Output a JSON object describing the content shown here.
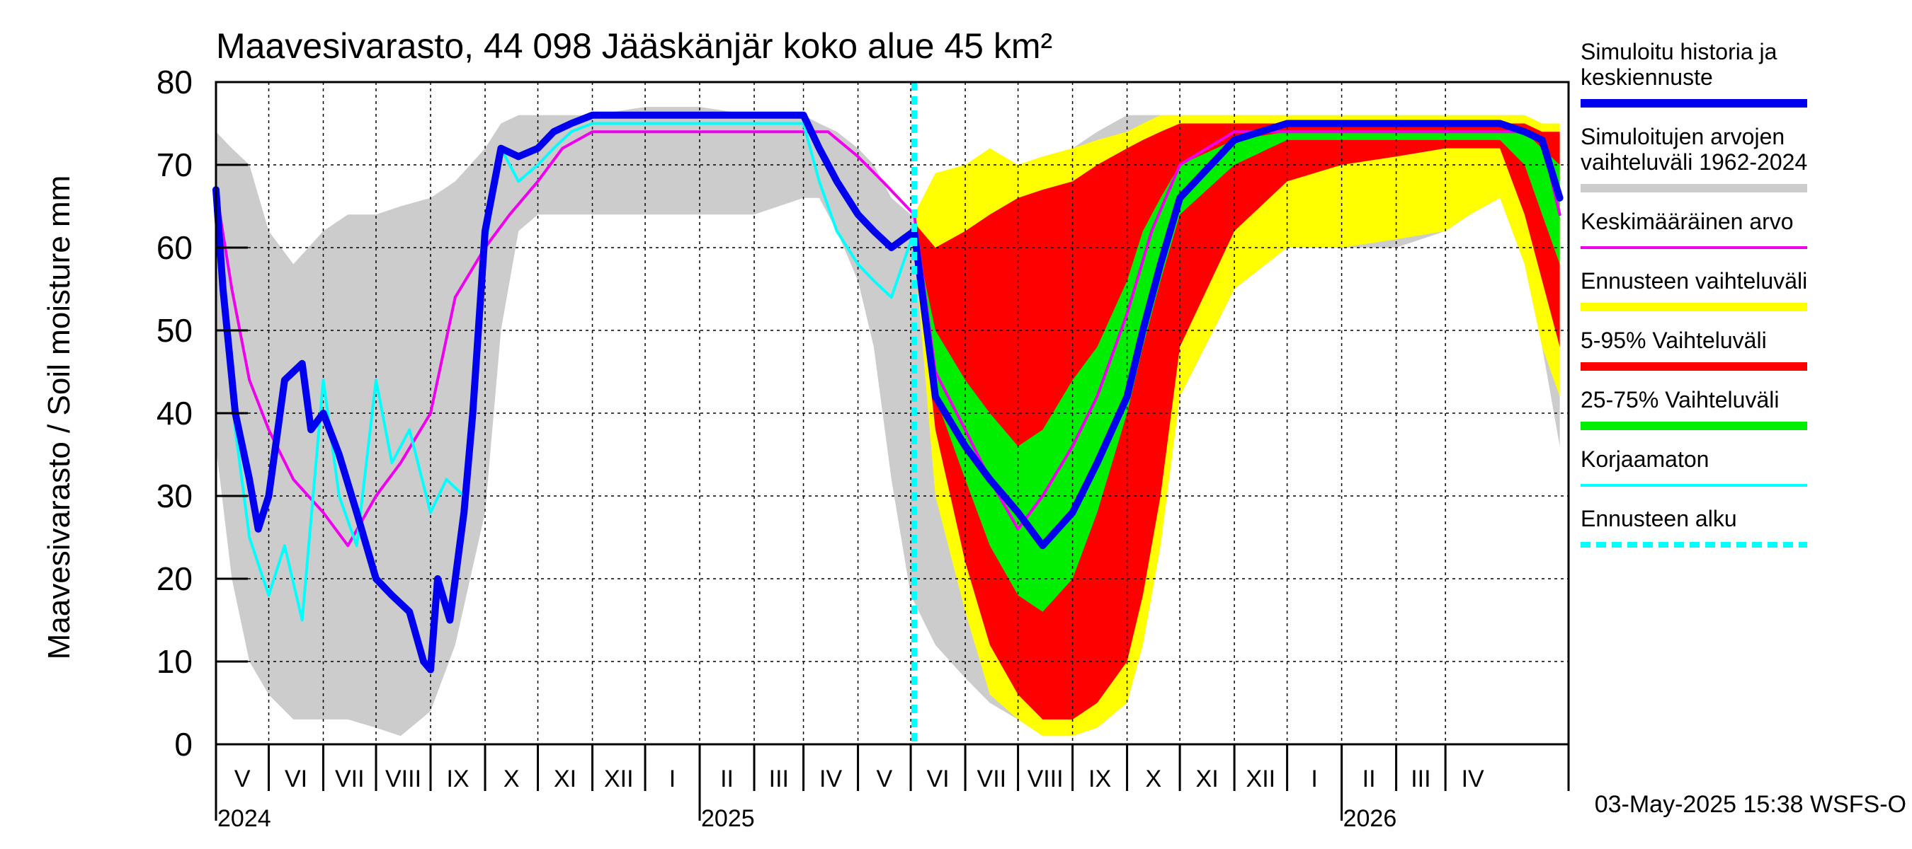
{
  "chart_data": {
    "type": "area",
    "title": "Maavesivarasto, 44 098 Jääskänjär koko alue 45 km²",
    "ylabel": "Maavesivarasto / Soil moisture   mm",
    "ylim": [
      0,
      80
    ],
    "yticks": [
      0,
      10,
      20,
      30,
      40,
      50,
      60,
      70,
      80
    ],
    "xlim": [
      "2024-04-01",
      "2026-05-10"
    ],
    "grid": true,
    "legend_position": "right",
    "forecast_start": "2025-05-03",
    "footer": "03-May-2025 15:38 WSFS-O",
    "months": [
      {
        "label": "V",
        "start": "2024-04-01",
        "end": "2024-05-01"
      },
      {
        "label": "VI",
        "start": "2024-05-01",
        "end": "2024-06-01"
      },
      {
        "label": "VII",
        "start": "2024-06-01",
        "end": "2024-07-01"
      },
      {
        "label": "VIII",
        "start": "2024-07-01",
        "end": "2024-08-01"
      },
      {
        "label": "IX",
        "start": "2024-08-01",
        "end": "2024-09-01"
      },
      {
        "label": "X",
        "start": "2024-09-01",
        "end": "2024-10-01"
      },
      {
        "label": "XI",
        "start": "2024-10-01",
        "end": "2024-11-01"
      },
      {
        "label": "XII",
        "start": "2024-11-01",
        "end": "2024-12-01"
      },
      {
        "label": "I",
        "start": "2024-12-01",
        "end": "2025-01-01"
      },
      {
        "label": "II",
        "start": "2025-01-01",
        "end": "2025-02-01"
      },
      {
        "label": "III",
        "start": "2025-02-01",
        "end": "2025-03-01"
      },
      {
        "label": "IV",
        "start": "2025-03-01",
        "end": "2025-04-01"
      },
      {
        "label": "V",
        "start": "2025-04-01",
        "end": "2025-05-01"
      },
      {
        "label": "VI",
        "start": "2025-05-01",
        "end": "2025-06-01"
      },
      {
        "label": "VII",
        "start": "2025-06-01",
        "end": "2025-07-01"
      },
      {
        "label": "VIII",
        "start": "2025-07-01",
        "end": "2025-08-01"
      },
      {
        "label": "IX",
        "start": "2025-08-01",
        "end": "2025-09-01"
      },
      {
        "label": "X",
        "start": "2025-09-01",
        "end": "2025-10-01"
      },
      {
        "label": "XI",
        "start": "2025-10-01",
        "end": "2025-11-01"
      },
      {
        "label": "XII",
        "start": "2025-11-01",
        "end": "2025-12-01"
      },
      {
        "label": "I",
        "start": "2025-12-01",
        "end": "2026-01-01"
      },
      {
        "label": "II",
        "start": "2026-01-01",
        "end": "2026-02-01"
      },
      {
        "label": "III",
        "start": "2026-02-01",
        "end": "2026-03-01"
      },
      {
        "label": "IV",
        "start": "2026-03-01",
        "end": "2026-04-01"
      }
    ],
    "year_labels": [
      {
        "label": "2024",
        "date": "2024-04-01"
      },
      {
        "label": "2025",
        "date": "2025-01-01"
      },
      {
        "label": "2026",
        "date": "2026-01-01"
      }
    ],
    "legend": [
      {
        "label": "Simuloitu historia ja\nkeskiennuste",
        "color": "#0000ee",
        "style": "line"
      },
      {
        "label": "Simuloitujen arvojen\nvaihteluväli 1962-2024",
        "color": "#cccccc",
        "style": "line"
      },
      {
        "label": "Keskimääräinen arvo",
        "color": "#ee00ee",
        "style": "thin"
      },
      {
        "label": "Ennusteen vaihteluväli",
        "color": "#ffff00",
        "style": "line"
      },
      {
        "label": "5-95% Vaihteluväli",
        "color": "#ff0000",
        "style": "line"
      },
      {
        "label": "25-75% Vaihteluväli",
        "color": "#00ee00",
        "style": "line"
      },
      {
        "label": "Korjaamaton",
        "color": "#00ffff",
        "style": "thin"
      },
      {
        "label": "Ennusteen alku",
        "color": "#00ffff",
        "style": "dashed"
      }
    ],
    "series": {
      "historical_range": {
        "name": "Simuloitujen arvojen vaihteluväli 1962-2024",
        "color": "#cccccc",
        "x": [
          "2024-04-01",
          "2024-04-10",
          "2024-04-20",
          "2024-05-01",
          "2024-05-15",
          "2024-06-01",
          "2024-06-15",
          "2024-07-01",
          "2024-07-15",
          "2024-08-01",
          "2024-08-15",
          "2024-09-01",
          "2024-09-10",
          "2024-09-20",
          "2024-10-01",
          "2024-11-01",
          "2024-12-01",
          "2025-01-01",
          "2025-02-01",
          "2025-03-01",
          "2025-03-10",
          "2025-03-20",
          "2025-04-01",
          "2025-04-10",
          "2025-04-20",
          "2025-05-01",
          "2025-05-15",
          "2025-06-01",
          "2025-06-15",
          "2025-07-01",
          "2025-07-15",
          "2025-08-01",
          "2025-08-15",
          "2025-09-01",
          "2025-09-10",
          "2025-09-20",
          "2025-10-01",
          "2025-11-01",
          "2025-12-01",
          "2026-01-01",
          "2026-02-01",
          "2026-03-01",
          "2026-03-15",
          "2026-04-01",
          "2026-04-15",
          "2026-04-25",
          "2026-05-05"
        ],
        "upper": [
          74,
          72,
          70,
          62,
          58,
          62,
          64,
          64,
          65,
          66,
          68,
          72,
          75,
          76,
          76,
          76,
          77,
          77,
          76,
          76,
          75,
          74,
          72,
          70,
          66,
          64,
          64,
          62,
          60,
          66,
          68,
          72,
          74,
          76,
          76,
          76,
          76,
          76,
          76,
          76,
          76,
          76,
          76,
          76,
          76,
          75,
          74
        ],
        "lower": [
          36,
          20,
          10,
          6,
          3,
          3,
          3,
          2,
          1,
          4,
          12,
          28,
          50,
          62,
          64,
          64,
          64,
          64,
          64,
          66,
          66,
          62,
          56,
          48,
          32,
          18,
          12,
          8,
          5,
          3,
          2,
          3,
          6,
          10,
          22,
          34,
          48,
          58,
          60,
          60,
          60,
          62,
          64,
          66,
          58,
          48,
          36
        ]
      },
      "forecast_range": {
        "name": "Ennusteen vaihteluväli",
        "color": "#ffff00",
        "x": [
          "2025-05-03",
          "2025-05-15",
          "2025-06-01",
          "2025-06-15",
          "2025-07-01",
          "2025-07-15",
          "2025-08-01",
          "2025-08-15",
          "2025-09-01",
          "2025-09-10",
          "2025-09-20",
          "2025-10-01",
          "2025-11-01",
          "2025-12-01",
          "2026-01-01",
          "2026-02-01",
          "2026-03-01",
          "2026-03-15",
          "2026-04-01",
          "2026-04-15",
          "2026-04-25",
          "2026-05-05"
        ],
        "upper": [
          64,
          69,
          70,
          72,
          70,
          71,
          72,
          73,
          74,
          75,
          76,
          76,
          76,
          76,
          76,
          76,
          76,
          76,
          76,
          76,
          75,
          75
        ],
        "lower": [
          60,
          30,
          16,
          6,
          3,
          1,
          1,
          2,
          5,
          12,
          24,
          42,
          55,
          60,
          60,
          61,
          62,
          64,
          66,
          58,
          48,
          42
        ]
      },
      "p5_95": {
        "name": "5-95% Vaihteluväli",
        "color": "#ff0000",
        "x": [
          "2025-05-03",
          "2025-05-15",
          "2025-06-01",
          "2025-06-15",
          "2025-07-01",
          "2025-07-15",
          "2025-08-01",
          "2025-08-15",
          "2025-09-01",
          "2025-09-10",
          "2025-09-20",
          "2025-10-01",
          "2025-11-01",
          "2025-12-01",
          "2026-01-01",
          "2026-02-01",
          "2026-03-01",
          "2026-03-15",
          "2026-04-01",
          "2026-04-15",
          "2026-04-25",
          "2026-05-05"
        ],
        "upper": [
          63,
          60,
          62,
          64,
          66,
          67,
          68,
          70,
          72,
          73,
          74,
          75,
          75,
          75,
          75,
          75,
          75,
          75,
          75,
          75,
          74,
          74
        ],
        "lower": [
          61,
          38,
          22,
          12,
          6,
          3,
          3,
          5,
          10,
          18,
          30,
          48,
          62,
          68,
          70,
          71,
          72,
          72,
          72,
          64,
          56,
          48
        ]
      },
      "p25_75": {
        "name": "25-75% Vaihteluväli",
        "color": "#00ee00",
        "x": [
          "2025-05-03",
          "2025-05-15",
          "2025-06-01",
          "2025-06-15",
          "2025-07-01",
          "2025-07-15",
          "2025-08-01",
          "2025-08-15",
          "2025-09-01",
          "2025-09-10",
          "2025-09-20",
          "2025-10-01",
          "2025-11-01",
          "2025-12-01",
          "2026-01-01",
          "2026-02-01",
          "2026-03-01",
          "2026-03-15",
          "2026-04-01",
          "2026-04-15",
          "2026-04-25",
          "2026-05-05"
        ],
        "upper": [
          62,
          50,
          44,
          40,
          36,
          38,
          44,
          48,
          56,
          62,
          66,
          70,
          73,
          74,
          74,
          74,
          74,
          74,
          74,
          74,
          72,
          70
        ],
        "lower": [
          61,
          42,
          32,
          24,
          18,
          16,
          20,
          28,
          40,
          48,
          56,
          64,
          70,
          73,
          73,
          73,
          73,
          73,
          73,
          70,
          64,
          58
        ]
      },
      "simulated": {
        "name": "Simuloitu historia ja keskiennuste",
        "color": "#0000ee",
        "x": [
          "2024-04-01",
          "2024-04-05",
          "2024-04-12",
          "2024-04-20",
          "2024-04-25",
          "2024-05-01",
          "2024-05-10",
          "2024-05-20",
          "2024-05-25",
          "2024-06-01",
          "2024-06-10",
          "2024-06-20",
          "2024-07-01",
          "2024-07-10",
          "2024-07-20",
          "2024-07-28",
          "2024-08-01",
          "2024-08-05",
          "2024-08-12",
          "2024-08-20",
          "2024-08-25",
          "2024-09-01",
          "2024-09-10",
          "2024-09-20",
          "2024-10-01",
          "2024-10-10",
          "2024-10-20",
          "2024-11-01",
          "2024-12-01",
          "2025-01-01",
          "2025-02-01",
          "2025-03-01",
          "2025-03-10",
          "2025-03-20",
          "2025-04-01",
          "2025-04-10",
          "2025-04-20",
          "2025-05-03",
          "2025-05-15",
          "2025-06-01",
          "2025-06-15",
          "2025-07-01",
          "2025-07-15",
          "2025-08-01",
          "2025-08-15",
          "2025-09-01",
          "2025-09-10",
          "2025-09-20",
          "2025-10-01",
          "2025-11-01",
          "2025-12-01",
          "2026-01-01",
          "2026-02-01",
          "2026-03-01",
          "2026-03-15",
          "2026-04-01",
          "2026-04-15",
          "2026-04-25",
          "2026-05-05"
        ],
        "y": [
          67,
          55,
          40,
          32,
          26,
          30,
          44,
          46,
          38,
          40,
          35,
          28,
          20,
          18,
          16,
          10,
          9,
          20,
          15,
          28,
          40,
          62,
          72,
          71,
          72,
          74,
          75,
          76,
          76,
          76,
          76,
          76,
          72,
          68,
          64,
          62,
          60,
          62,
          42,
          36,
          32,
          28,
          24,
          28,
          34,
          42,
          50,
          58,
          66,
          73,
          75,
          75,
          75,
          75,
          75,
          75,
          74,
          73,
          66
        ]
      },
      "mean": {
        "name": "Keskimääräinen arvo",
        "color": "#ee00ee",
        "x": [
          "2024-04-01",
          "2024-04-10",
          "2024-04-20",
          "2024-05-01",
          "2024-05-15",
          "2024-06-01",
          "2024-06-15",
          "2024-07-01",
          "2024-07-15",
          "2024-08-01",
          "2024-08-15",
          "2024-09-01",
          "2024-09-15",
          "2024-10-01",
          "2024-10-15",
          "2024-11-01",
          "2024-12-01",
          "2025-01-01",
          "2025-02-01",
          "2025-03-01",
          "2025-03-15",
          "2025-04-01",
          "2025-04-15",
          "2025-05-03",
          "2025-05-15",
          "2025-06-01",
          "2025-06-15",
          "2025-07-01",
          "2025-07-15",
          "2025-08-01",
          "2025-08-15",
          "2025-09-01",
          "2025-09-15",
          "2025-10-01",
          "2025-11-01",
          "2025-12-01",
          "2026-01-01",
          "2026-02-01",
          "2026-03-01",
          "2026-03-15",
          "2026-04-01",
          "2026-04-15",
          "2026-04-25",
          "2026-05-05"
        ],
        "y": [
          67,
          55,
          44,
          38,
          32,
          28,
          24,
          30,
          34,
          40,
          54,
          60,
          64,
          68,
          72,
          74,
          74,
          74,
          74,
          74,
          74,
          71,
          68,
          64,
          45,
          38,
          32,
          26,
          30,
          36,
          42,
          52,
          62,
          70,
          74,
          74,
          74,
          74,
          74,
          74,
          74,
          74,
          73,
          64
        ]
      },
      "uncorrected": {
        "name": "Korjaamaton",
        "color": "#00ffff",
        "x": [
          "2024-04-01",
          "2024-04-05",
          "2024-04-12",
          "2024-04-20",
          "2024-05-01",
          "2024-05-10",
          "2024-05-20",
          "2024-06-01",
          "2024-06-10",
          "2024-06-20",
          "2024-07-01",
          "2024-07-10",
          "2024-07-20",
          "2024-08-01",
          "2024-08-10",
          "2024-08-20",
          "2024-09-01",
          "2024-09-10",
          "2024-09-20",
          "2024-10-01",
          "2024-10-10",
          "2024-10-20",
          "2024-11-01",
          "2024-12-01",
          "2025-01-01",
          "2025-02-01",
          "2025-03-01",
          "2025-03-10",
          "2025-03-20",
          "2025-04-01",
          "2025-04-10",
          "2025-04-20",
          "2025-05-03"
        ],
        "y": [
          67,
          55,
          38,
          25,
          18,
          24,
          15,
          44,
          30,
          24,
          44,
          34,
          38,
          28,
          32,
          30,
          60,
          72,
          68,
          70,
          72,
          74,
          75,
          75,
          75,
          75,
          75,
          68,
          62,
          58,
          56,
          54,
          62
        ]
      }
    }
  }
}
